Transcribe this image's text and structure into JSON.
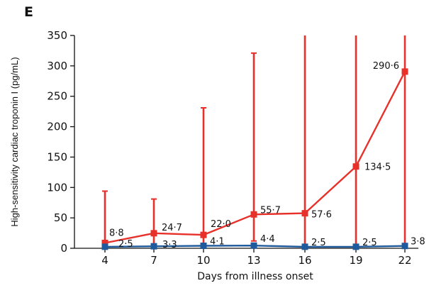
{
  "panel_label": "E",
  "chart_data": {
    "type": "line",
    "xlabel": "Days from illness onset",
    "ylabel": "High-sensitivity cardiac troponin I (pg/mL)",
    "x": [
      4,
      7,
      10,
      13,
      16,
      19,
      22
    ],
    "xticks": [
      "4",
      "7",
      "10",
      "13",
      "16",
      "19",
      "22"
    ],
    "ylim": [
      0,
      350
    ],
    "yticks": [
      "0",
      "50",
      "100",
      "150",
      "200",
      "250",
      "300",
      "350"
    ],
    "grid": false,
    "series": [
      {
        "color": "#e8302a",
        "marker": "square",
        "values": [
          8.8,
          24.7,
          22.0,
          55.7,
          57.6,
          134.5,
          290.6
        ],
        "labels": [
          "8·8",
          "24·7",
          "22·0",
          "55·7",
          "57·6",
          "134·5",
          "290·6"
        ],
        "error_upper": [
          94,
          81,
          231,
          321,
          350,
          350,
          350
        ],
        "error_lower": [
          0,
          0,
          0,
          12,
          5,
          0,
          0
        ]
      },
      {
        "color": "#1e5a9c",
        "marker": "square",
        "values": [
          2.5,
          3.3,
          4.1,
          4.4,
          2.5,
          2.5,
          3.8
        ],
        "labels": [
          "2·5",
          "3·3",
          "4·1",
          "4·4",
          "2·5",
          "2·5",
          "3·8"
        ]
      }
    ]
  }
}
